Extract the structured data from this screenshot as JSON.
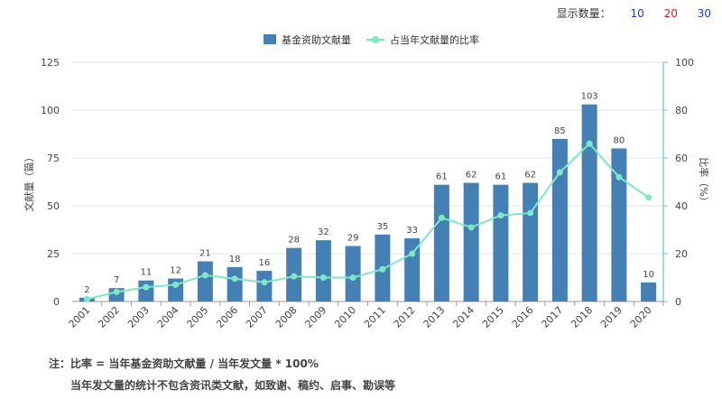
{
  "display_count": {
    "label": "显示数量：",
    "options": [
      {
        "text": "10",
        "color": "#1a3fc0"
      },
      {
        "text": "20",
        "color": "#e02020"
      },
      {
        "text": "30",
        "color": "#1a3fc0"
      }
    ]
  },
  "colors": {
    "bar": "#4480b4",
    "line": "#7fe7c7",
    "axis_right": "#5cc9d6"
  },
  "chart_data": {
    "type": "bar",
    "categories": [
      "2001",
      "2002",
      "2003",
      "2004",
      "2005",
      "2006",
      "2007",
      "2008",
      "2009",
      "2010",
      "2011",
      "2012",
      "2013",
      "2014",
      "2015",
      "2016",
      "2017",
      "2018",
      "2019",
      "2020"
    ],
    "series": [
      {
        "name": "基金资助文献量",
        "type": "bar",
        "axis": "left",
        "values": [
          2,
          7,
          11,
          12,
          21,
          18,
          16,
          28,
          32,
          29,
          35,
          33,
          61,
          62,
          61,
          62,
          85,
          103,
          80,
          10
        ]
      },
      {
        "name": "占当年文献量的比率",
        "type": "line",
        "axis": "right",
        "values": [
          1,
          4,
          6,
          7,
          11,
          9.5,
          8,
          10.5,
          10,
          10,
          13.5,
          20,
          35,
          31,
          36,
          37,
          54,
          66,
          52,
          43.5
        ]
      }
    ],
    "ylabel": "文献量（篇）",
    "y2label": "比率（%）",
    "ylim": [
      0,
      125
    ],
    "y2lim": [
      0,
      100
    ],
    "yticks": [
      "0",
      "25",
      "50",
      "75",
      "100",
      "125"
    ],
    "y2ticks": [
      "0",
      "20",
      "40",
      "60",
      "80",
      "100"
    ],
    "legend_position": "top-center",
    "grid": true
  },
  "notes": {
    "line1": "注：比率 = 当年基金资助文献量 / 当年发文量 * 100%",
    "line2": "当年发文量的统计不包含资讯类文献，如致谢、稿约、启事、勘误等"
  }
}
